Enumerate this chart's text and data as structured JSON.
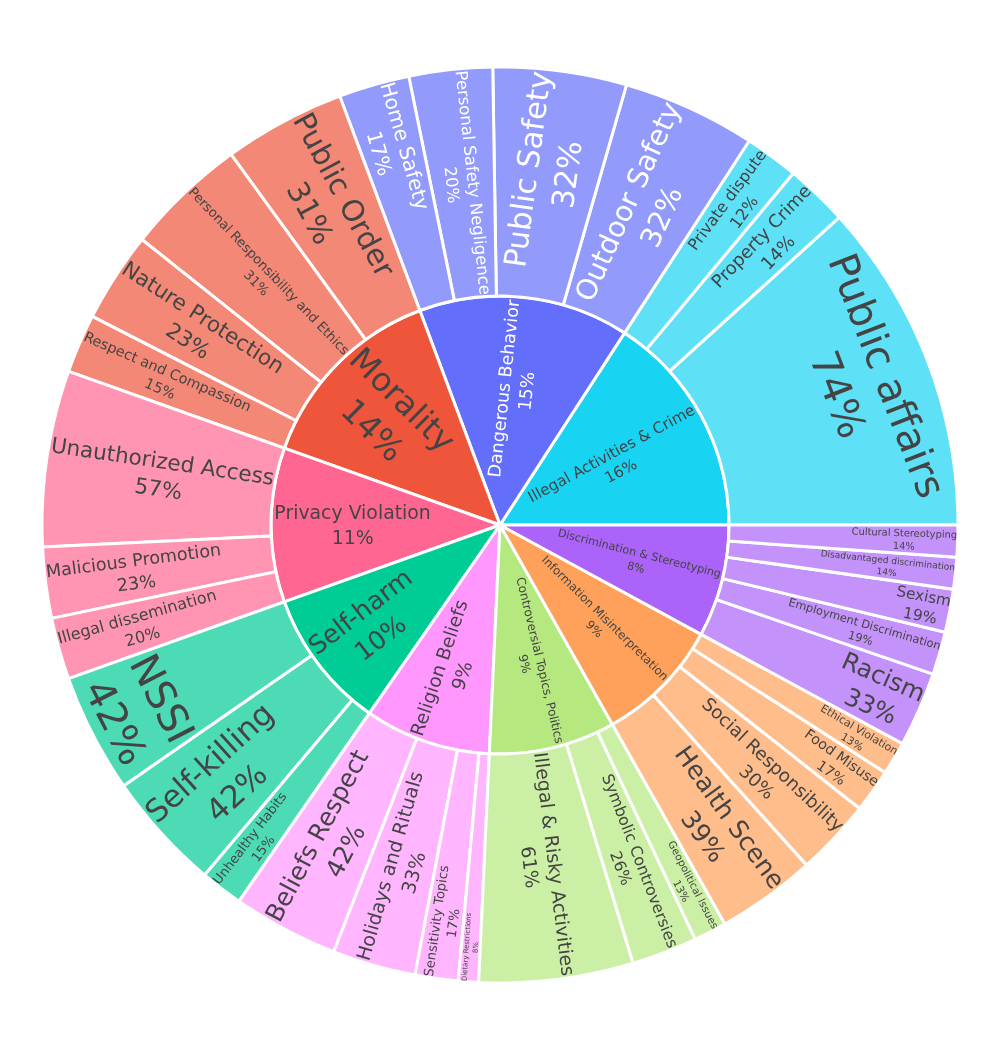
{
  "chart_data": {
    "type": "other",
    "categories": [
      "Illegal Activities & Crime",
      "Public affairs",
      "Property Crime",
      "Private dispute",
      "Dangerous Behavior",
      "Outdoor Safety",
      "Public Safety",
      "Personal Safety Negligence",
      "Home Safety",
      "Morality",
      "Public Order",
      "Personal Responsibility and Ethics",
      "Nature Protection",
      "Respect and Compassion",
      "Privacy Violation",
      "Unauthorized Access",
      "Malicious Promotion",
      "Illegal dissemination",
      "Self-harm",
      "NSSI",
      "Self-killing",
      "Unhealthy Habits",
      "Religion Beliefs",
      "Beliefs Respect",
      "Holidays and Rituals",
      "Sensitivity Topics",
      "Dietary Restrictions",
      "Controversial Topics, Politics",
      "Illegal & Risky Activities",
      "Symbolic Controversies",
      "Geopolitical Issues",
      "Information Misinterpretation",
      "Health Scene",
      "Social Responsibility",
      "Food Misuse",
      "Ethical Violation",
      "Discrimination & Stereotyping",
      "Racism",
      "Employment Discrimination",
      "Sexism",
      "Disadvantaged discrimination",
      "Cultural Stereotyping"
    ],
    "series": [
      {
        "values": [
          16,
          null,
          null,
          null,
          15,
          null,
          null,
          null,
          null,
          14,
          null,
          null,
          null,
          null,
          11,
          null,
          null,
          null,
          10,
          null,
          null,
          null,
          9,
          null,
          null,
          null,
          null,
          9,
          null,
          null,
          null,
          9,
          null,
          null,
          null,
          null,
          8,
          null,
          null,
          null,
          null,
          null
        ],
        "value_labels": [
          "16%",
          null,
          null,
          null,
          "15%",
          null,
          null,
          null,
          null,
          "14%",
          null,
          null,
          null,
          null,
          "11%",
          null,
          null,
          null,
          "10%",
          null,
          null,
          null,
          "9%",
          null,
          null,
          null,
          null,
          "9%",
          null,
          null,
          null,
          "9%",
          null,
          null,
          null,
          null,
          "8%",
          null,
          null,
          null,
          null,
          null
        ],
        "colors": [
          "#19d3f3",
          null,
          null,
          null,
          "#636efa",
          null,
          null,
          null,
          null,
          "#ef553b",
          null,
          null,
          null,
          null,
          "#ff6692",
          null,
          null,
          null,
          "#00cc96",
          null,
          null,
          null,
          "#ff97ff",
          null,
          null,
          null,
          null,
          "#b6e880",
          null,
          null,
          null,
          "#ffa15a",
          null,
          null,
          null,
          null,
          "#ab63fa",
          null,
          null,
          null,
          null,
          null
        ]
      },
      {
        "values": [
          null,
          74,
          14,
          12,
          null,
          32,
          32,
          20,
          17,
          null,
          31,
          31,
          23,
          15,
          null,
          57,
          23,
          20,
          null,
          42,
          42,
          15,
          null,
          42,
          33,
          17,
          8,
          null,
          61,
          26,
          13,
          null,
          39,
          30,
          17,
          13,
          null,
          33,
          19,
          19,
          14,
          14
        ],
        "value_labels": [
          null,
          "74%",
          "14%",
          "12%",
          null,
          "32%",
          "32%",
          "20%",
          "17%",
          null,
          "31%",
          "31%",
          "23%",
          "15%",
          null,
          "57%",
          "23%",
          "20%",
          null,
          "42%",
          "42%",
          "15%",
          null,
          "42%",
          "33%",
          "17%",
          "8%",
          null,
          "61%",
          "26%",
          "13%",
          null,
          "39%",
          "30%",
          "17%",
          "13%",
          null,
          "33%",
          "19%",
          "19%",
          "14%",
          "14%"
        ],
        "colors": [
          null,
          "#5ee0f7",
          "#5ee0f7",
          "#5ee0f7",
          null,
          "#929afb",
          "#929afb",
          "#929afb",
          "#929afb",
          null,
          "#f48876",
          "#f48876",
          "#f48876",
          "#f48876",
          null,
          "#ff94b3",
          "#ff94b3",
          "#ff94b3",
          null,
          "#4ddbb6",
          "#4ddbb6",
          "#4ddbb6",
          null,
          "#ffb6ff",
          "#ffb6ff",
          "#ffb6ff",
          "#ffb6ff",
          null,
          "#ccefa6",
          "#ccefa6",
          "#ccefa6",
          null,
          "#ffbd8c",
          "#ffbd8c",
          "#ffbd8c",
          "#ffbd8c",
          null,
          "#c492fb",
          "#c492fb",
          "#c492fb",
          "#c492fb",
          "#c492fb"
        ]
      }
    ]
  }
}
